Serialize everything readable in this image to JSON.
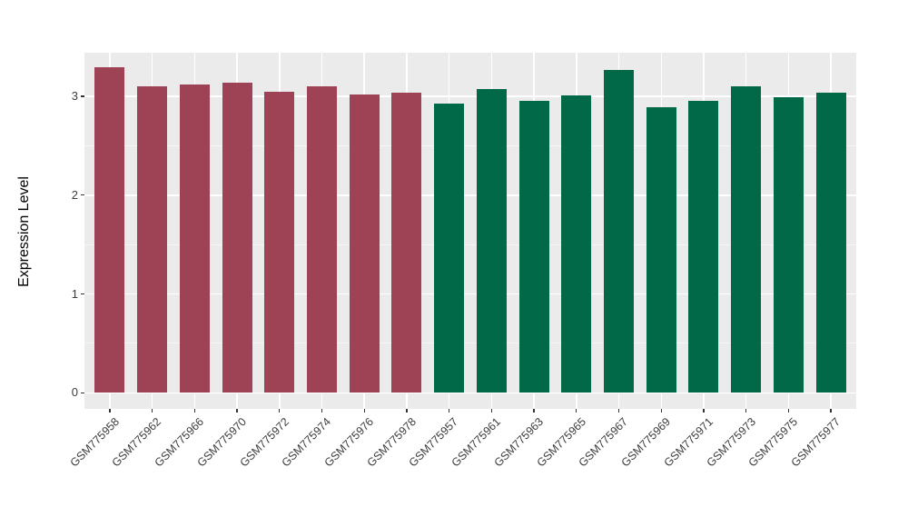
{
  "chart_data": {
    "type": "bar",
    "title": "",
    "xlabel": "",
    "ylabel": "Expression Level",
    "ylim": [
      0,
      3.45
    ],
    "yticks": [
      0,
      1,
      2,
      3
    ],
    "minor_yticks": [
      0.5,
      1.5,
      2.5
    ],
    "grid": "on",
    "legend": "none",
    "categories": [
      "GSM775958",
      "GSM775962",
      "GSM775966",
      "GSM775970",
      "GSM775972",
      "GSM775974",
      "GSM775976",
      "GSM775978",
      "GSM775957",
      "GSM775961",
      "GSM775963",
      "GSM775965",
      "GSM775967",
      "GSM775969",
      "GSM775971",
      "GSM775973",
      "GSM775975",
      "GSM775977"
    ],
    "values": [
      3.29,
      3.1,
      3.12,
      3.14,
      3.05,
      3.1,
      3.02,
      3.04,
      2.93,
      3.07,
      2.95,
      3.01,
      3.27,
      2.89,
      2.95,
      3.1,
      2.99,
      3.04
    ],
    "group_of_bar": [
      "group1",
      "group1",
      "group1",
      "group1",
      "group1",
      "group1",
      "group1",
      "group1",
      "group2",
      "group2",
      "group2",
      "group2",
      "group2",
      "group2",
      "group2",
      "group2",
      "group2",
      "group2"
    ],
    "colors": {
      "group1": "#9D4355",
      "group2": "#016947",
      "panel_background": "#EBEBEB",
      "gridline": "#FFFFFF",
      "axis_text": "#3c3c3c"
    }
  }
}
